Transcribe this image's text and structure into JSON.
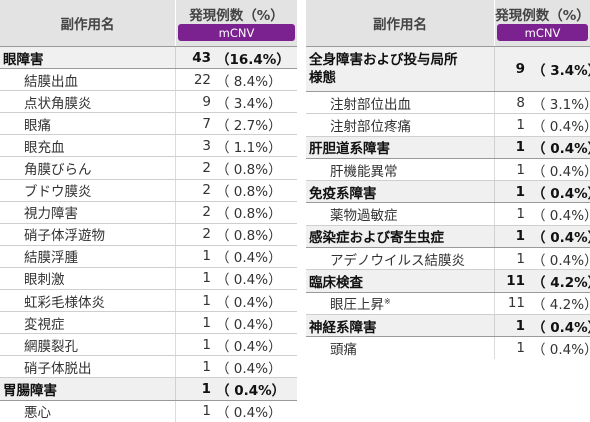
{
  "left": {
    "header": {
      "name": "副作用名",
      "title": "発現例数（%）",
      "badge": "mCNV"
    },
    "rows": [
      {
        "type": "major",
        "name": "眼障害",
        "count": "43",
        "pct": "（16.4%）"
      },
      {
        "type": "minor",
        "name": "結膜出血",
        "count": "22",
        "pct": "（ 8.4%）"
      },
      {
        "type": "minor",
        "name": "点状角膜炎",
        "count": "9",
        "pct": "（ 3.4%）"
      },
      {
        "type": "minor",
        "name": "眼痛",
        "count": "7",
        "pct": "（ 2.7%）"
      },
      {
        "type": "minor",
        "name": "眼充血",
        "count": "3",
        "pct": "（ 1.1%）"
      },
      {
        "type": "minor",
        "name": "角膜びらん",
        "count": "2",
        "pct": "（ 0.8%）"
      },
      {
        "type": "minor",
        "name": "ブドウ膜炎",
        "count": "2",
        "pct": "（ 0.8%）"
      },
      {
        "type": "minor",
        "name": "視力障害",
        "count": "2",
        "pct": "（ 0.8%）"
      },
      {
        "type": "minor",
        "name": "硝子体浮遊物",
        "count": "2",
        "pct": "（ 0.8%）"
      },
      {
        "type": "minor",
        "name": "結膜浮腫",
        "count": "1",
        "pct": "（ 0.4%）"
      },
      {
        "type": "minor",
        "name": "眼刺激",
        "count": "1",
        "pct": "（ 0.4%）"
      },
      {
        "type": "minor",
        "name": "虹彩毛様体炎",
        "count": "1",
        "pct": "（ 0.4%）"
      },
      {
        "type": "minor",
        "name": "変視症",
        "count": "1",
        "pct": "（ 0.4%）"
      },
      {
        "type": "minor",
        "name": "網膜裂孔",
        "count": "1",
        "pct": "（ 0.4%）"
      },
      {
        "type": "minor",
        "name": "硝子体脱出",
        "count": "1",
        "pct": "（ 0.4%）"
      },
      {
        "type": "major",
        "name": "胃腸障害",
        "count": "1",
        "pct": "（ 0.4%）"
      },
      {
        "type": "minor",
        "name": "悪心",
        "count": "1",
        "pct": "（ 0.4%）"
      }
    ]
  },
  "right": {
    "header": {
      "name": "副作用名",
      "title": "発現例数（%）",
      "badge": "mCNV"
    },
    "rows": [
      {
        "type": "major",
        "name": "全身障害および投与局所様態",
        "count": "9",
        "pct": "（ 3.4%）",
        "two_line": true
      },
      {
        "type": "minor",
        "name": "注射部位出血",
        "count": "8",
        "pct": "（ 3.1%）"
      },
      {
        "type": "minor",
        "name": "注射部位疼痛",
        "count": "1",
        "pct": "（ 0.4%）"
      },
      {
        "type": "major",
        "name": "肝胆道系障害",
        "count": "1",
        "pct": "（ 0.4%）"
      },
      {
        "type": "minor",
        "name": "肝機能異常",
        "count": "1",
        "pct": "（ 0.4%）"
      },
      {
        "type": "major",
        "name": "免疫系障害",
        "count": "1",
        "pct": "（ 0.4%）"
      },
      {
        "type": "minor",
        "name": "薬物過敏症",
        "count": "1",
        "pct": "（ 0.4%）"
      },
      {
        "type": "major",
        "name": "感染症および寄生虫症",
        "count": "1",
        "pct": "（ 0.4%）"
      },
      {
        "type": "minor",
        "name": "アデノウイルス結膜炎",
        "count": "1",
        "pct": "（ 0.4%）"
      },
      {
        "type": "major",
        "name": "臨床検査",
        "count": "11",
        "pct": "（ 4.2%）"
      },
      {
        "type": "minor",
        "name": "眼圧上昇",
        "note_mark": "※",
        "count": "11",
        "pct": "（ 4.2%）"
      },
      {
        "type": "major",
        "name": "神経系障害",
        "count": "1",
        "pct": "（ 0.4%）"
      },
      {
        "type": "minor",
        "name": "頭痛",
        "count": "1",
        "pct": "（ 0.4%）"
      }
    ]
  }
}
